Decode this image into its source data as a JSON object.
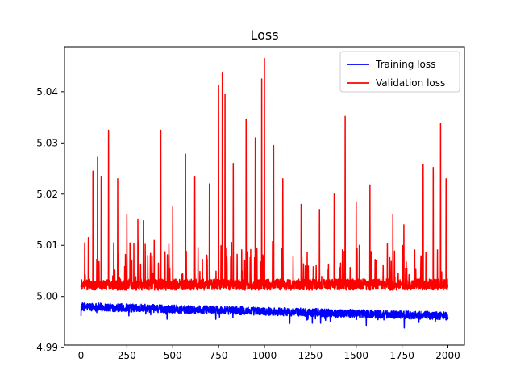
{
  "chart_data": {
    "type": "line",
    "title": "Loss",
    "xlabel": "",
    "ylabel": "",
    "xlim": [
      -90,
      2090
    ],
    "ylim": [
      4.9905,
      5.0488
    ],
    "x_ticks": [
      0,
      250,
      500,
      750,
      1000,
      1250,
      1500,
      1750,
      2000
    ],
    "y_ticks": [
      4.99,
      5.0,
      5.01,
      5.02,
      5.03,
      5.04
    ],
    "y_tick_labels": [
      "4.99",
      "5.00",
      "5.01",
      "5.02",
      "5.03",
      "5.04"
    ],
    "grid": false,
    "legend_position": "top-right",
    "series": [
      {
        "name": "Training loss",
        "color": "#0000ff",
        "generator": "noisy_decay",
        "points": 2000,
        "x_range": [
          0,
          2000
        ],
        "start_value": 4.998,
        "end_value": 4.9962,
        "noise_amplitude": 0.0016,
        "min": 4.9925,
        "max": 5.0002
      },
      {
        "name": "Validation loss",
        "color": "#ff0000",
        "generator": "baseline_with_spikes",
        "points": 2000,
        "x_range": [
          0,
          2000
        ],
        "baseline": 5.0022,
        "noise_amplitude": 0.0022,
        "spikes": [
          [
            20,
            5.0105
          ],
          [
            40,
            5.0115
          ],
          [
            65,
            5.0245
          ],
          [
            90,
            5.0272
          ],
          [
            110,
            5.0235
          ],
          [
            150,
            5.0325
          ],
          [
            200,
            5.023
          ],
          [
            250,
            5.016
          ],
          [
            310,
            5.015
          ],
          [
            340,
            5.0148
          ],
          [
            435,
            5.0325
          ],
          [
            500,
            5.0175
          ],
          [
            570,
            5.0278
          ],
          [
            620,
            5.0235
          ],
          [
            700,
            5.022
          ],
          [
            750,
            5.0412
          ],
          [
            770,
            5.0438
          ],
          [
            785,
            5.0395
          ],
          [
            830,
            5.026
          ],
          [
            900,
            5.0347
          ],
          [
            950,
            5.031
          ],
          [
            985,
            5.0425
          ],
          [
            1000,
            5.0465
          ],
          [
            1050,
            5.0295
          ],
          [
            1100,
            5.023
          ],
          [
            1200,
            5.018
          ],
          [
            1300,
            5.017
          ],
          [
            1380,
            5.02
          ],
          [
            1440,
            5.0352
          ],
          [
            1500,
            5.0185
          ],
          [
            1575,
            5.0218
          ],
          [
            1700,
            5.016
          ],
          [
            1760,
            5.014
          ],
          [
            1865,
            5.0258
          ],
          [
            1920,
            5.0252
          ],
          [
            1960,
            5.0338
          ],
          [
            1990,
            5.023
          ]
        ]
      }
    ]
  }
}
